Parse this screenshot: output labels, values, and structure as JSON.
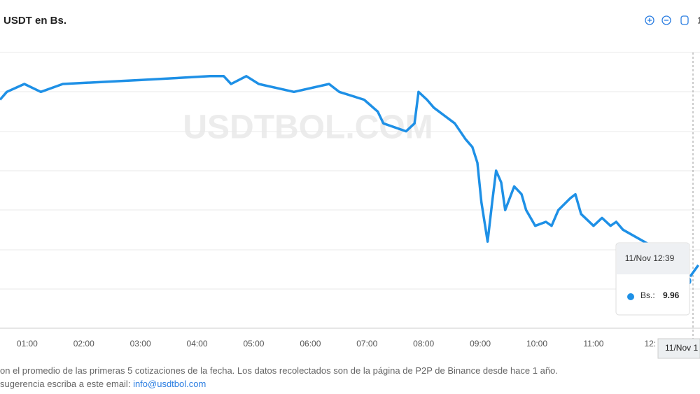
{
  "chart_data": {
    "type": "line",
    "title": "USDT en Bs.",
    "watermark": "USDTBOL.COM",
    "xlim": [
      0.52,
      12.88
    ],
    "ylim": [
      9.84,
      10.54
    ],
    "grid": true,
    "xticks": [
      {
        "value": 1,
        "label": "01:00"
      },
      {
        "value": 2,
        "label": "02:00"
      },
      {
        "value": 3,
        "label": "03:00"
      },
      {
        "value": 4,
        "label": "04:00"
      },
      {
        "value": 5,
        "label": "05:00"
      },
      {
        "value": 6,
        "label": "06:00"
      },
      {
        "value": 7,
        "label": "07:00"
      },
      {
        "value": 8,
        "label": "08:00"
      },
      {
        "value": 9,
        "label": "09:00"
      },
      {
        "value": 10,
        "label": "10:00"
      },
      {
        "value": 11,
        "label": "11:00"
      },
      {
        "value": 12,
        "label": "12:"
      }
    ],
    "x": [
      0.52,
      0.64,
      0.95,
      1.24,
      1.63,
      2.99,
      4.23,
      4.47,
      4.6,
      4.87,
      5.09,
      5.71,
      6.33,
      6.51,
      6.95,
      7.19,
      7.29,
      7.69,
      7.84,
      7.91,
      8.06,
      8.18,
      8.55,
      8.74,
      8.86,
      8.95,
      9.02,
      9.13,
      9.21,
      9.28,
      9.37,
      9.44,
      9.6,
      9.73,
      9.81,
      9.97,
      10.16,
      10.26,
      10.38,
      10.59,
      10.68,
      10.78,
      11.0,
      11.15,
      11.3,
      11.4,
      11.52,
      11.89,
      12.01,
      12.65,
      12.85
    ],
    "series": [
      {
        "color": "#1e90e6",
        "values": [
          10.42,
          10.44,
          10.46,
          10.44,
          10.46,
          10.47,
          10.48,
          10.48,
          10.46,
          10.48,
          10.46,
          10.44,
          10.46,
          10.44,
          10.42,
          10.39,
          10.36,
          10.34,
          10.36,
          10.44,
          10.42,
          10.4,
          10.36,
          10.32,
          10.3,
          10.26,
          10.16,
          10.06,
          10.16,
          10.24,
          10.21,
          10.14,
          10.2,
          10.18,
          10.14,
          10.1,
          10.11,
          10.1,
          10.14,
          10.17,
          10.18,
          10.13,
          10.1,
          10.12,
          10.1,
          10.11,
          10.09,
          10.06,
          10.05,
          9.96,
          10.0
        ]
      }
    ],
    "tooltip": {
      "time": "11/Nov 12:39",
      "label": "Bs.:"
    },
    "crosshair_label": "11/Nov 1"
  },
  "toolbar": {
    "extra": "1"
  },
  "footer": {
    "line1": "on el promedio de las primeras 5 cotizaciones de la fecha. Los datos recolectados son de la página de P2P de Binance desde hace 1 año.",
    "line2": "sugerencia escriba a este email:",
    "email": "info@usdtbol.com"
  }
}
